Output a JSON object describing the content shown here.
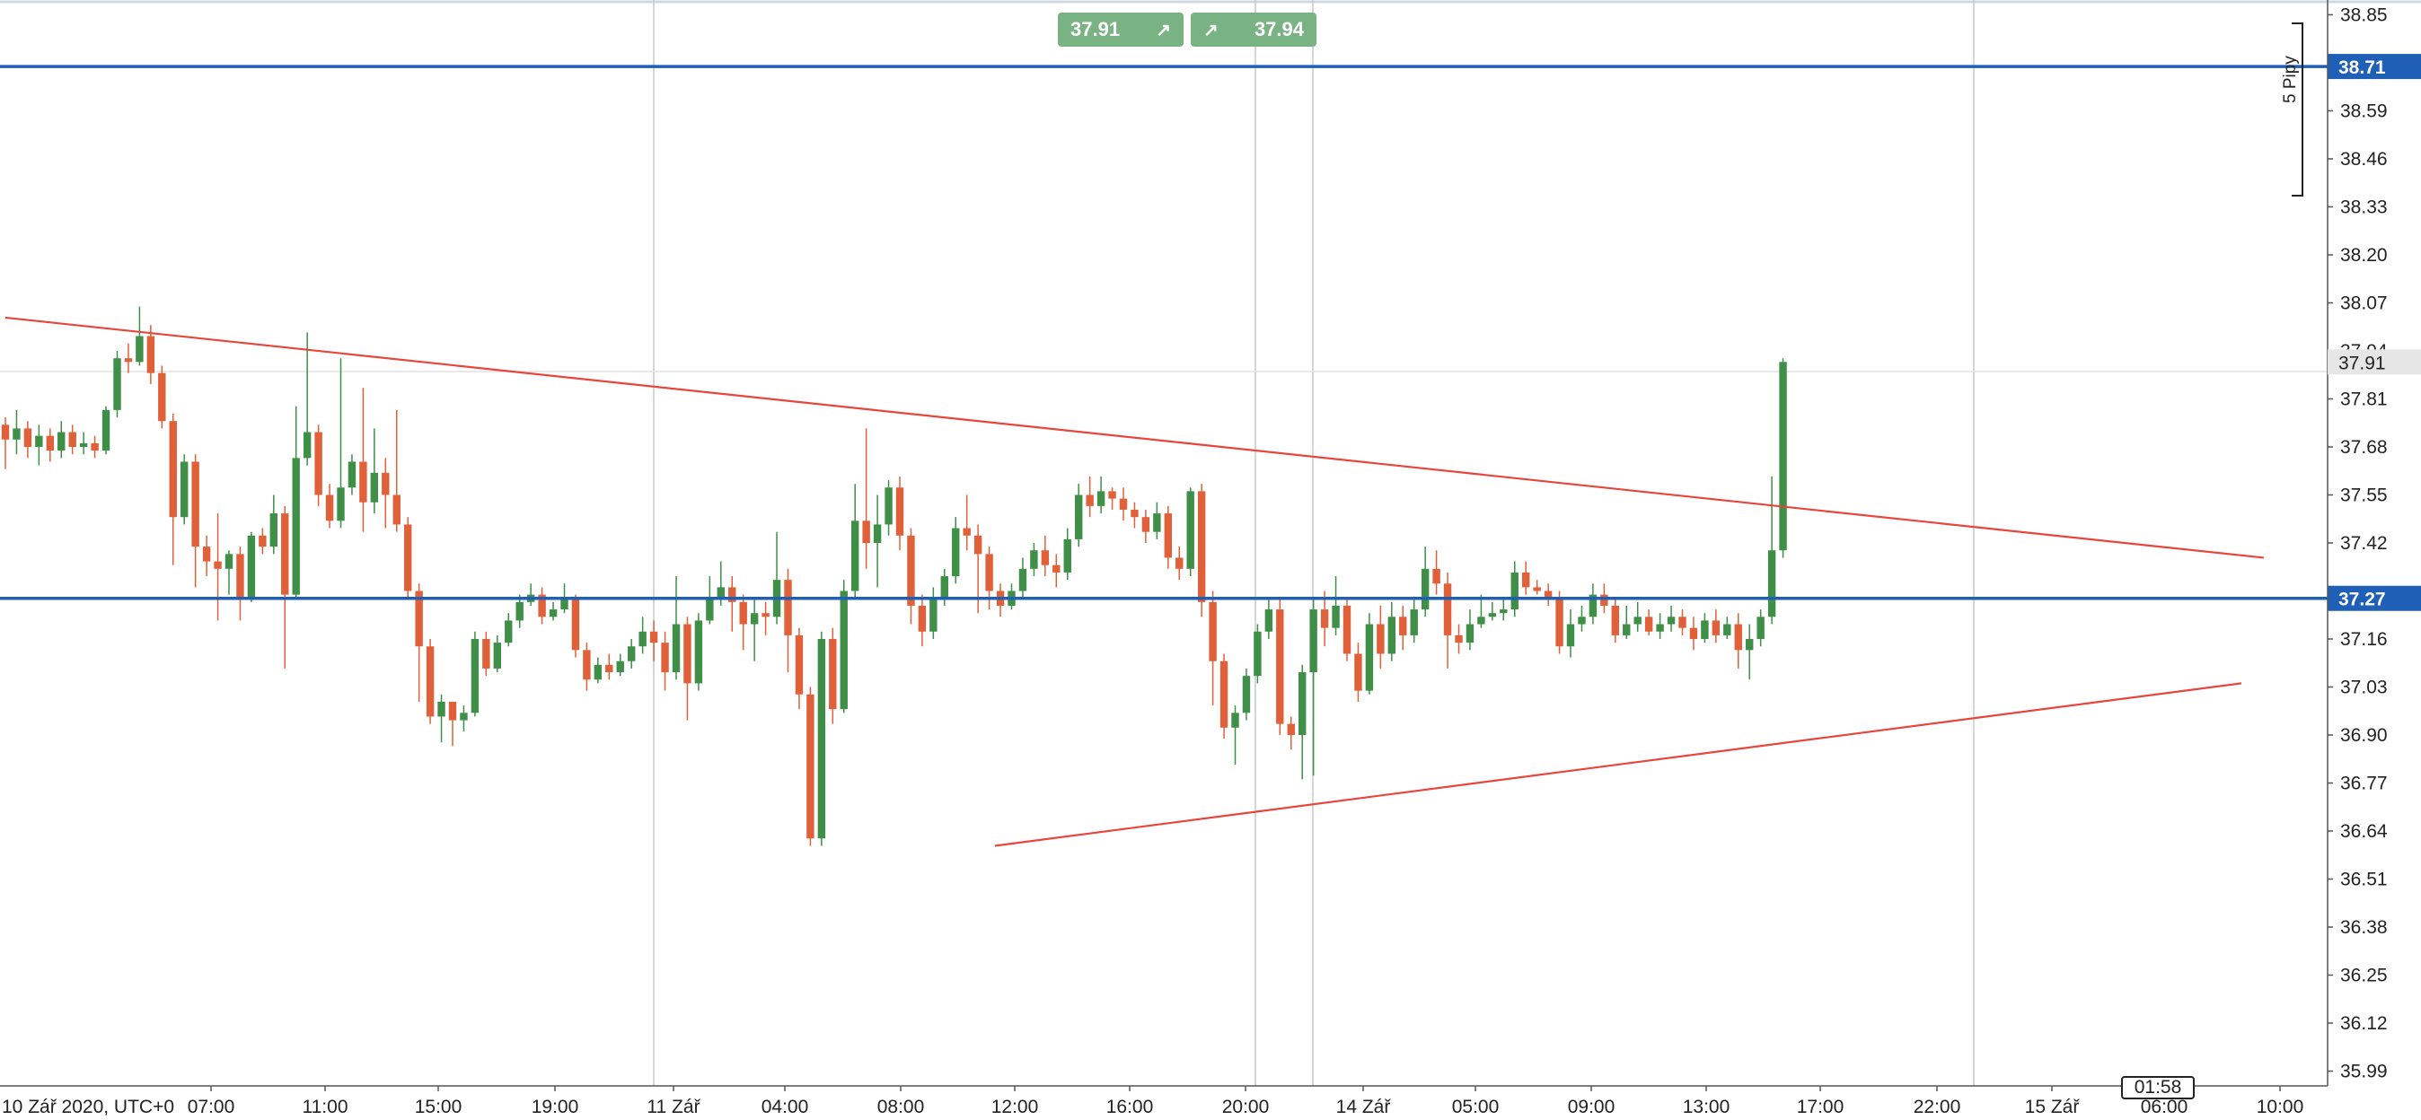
{
  "toolbar": {
    "sell_price": "37.91",
    "buy_price": "37.94",
    "countdown": "01:58",
    "measure_label": "5 Pipy"
  },
  "colors": {
    "bull": "#3f8f48",
    "bear": "#e0603a",
    "hline": "#1f5fb5",
    "trend": "#e8453c",
    "grid": "#c9c9c9",
    "button": "#7ab383"
  },
  "chart_data": {
    "type": "candlestick",
    "y_ticks": [
      "38.85",
      "38.72",
      "38.59",
      "38.46",
      "38.33",
      "38.20",
      "38.07",
      "37.94",
      "37.81",
      "37.68",
      "37.55",
      "37.42",
      "37.29",
      "37.16",
      "37.03",
      "36.90",
      "36.77",
      "36.64",
      "36.51",
      "36.38",
      "36.25",
      "36.12",
      "35.99"
    ],
    "x_ticks": [
      "10 Zář 2020, UTC+0",
      "07:00",
      "11:00",
      "15:00",
      "19:00",
      "11 Zář",
      "04:00",
      "08:00",
      "12:00",
      "16:00",
      "20:00",
      "14 Zář",
      "05:00",
      "09:00",
      "13:00",
      "17:00",
      "22:00",
      "15 Zář",
      "06:00",
      "10:00"
    ],
    "ylim": [
      35.95,
      38.89
    ],
    "horizontal_lines": [
      {
        "label": "38.71",
        "value": 38.71
      },
      {
        "label": "37.27",
        "value": 37.27
      }
    ],
    "current_price": {
      "label": "37.91",
      "value": 37.91
    },
    "trendlines": [
      {
        "name": "upper",
        "points": [
          [
            0,
            38.03
          ],
          [
            202,
            37.38
          ]
        ]
      },
      {
        "name": "lower",
        "points": [
          [
            88.5,
            36.6
          ],
          [
            200,
            37.04
          ]
        ]
      }
    ],
    "candles": [
      [
        37.74,
        37.7,
        37.76,
        37.62
      ],
      [
        37.7,
        37.73,
        37.78,
        37.66
      ],
      [
        37.73,
        37.68,
        37.75,
        37.65
      ],
      [
        37.68,
        37.71,
        37.74,
        37.63
      ],
      [
        37.71,
        37.67,
        37.73,
        37.64
      ],
      [
        37.67,
        37.72,
        37.75,
        37.65
      ],
      [
        37.72,
        37.68,
        37.74,
        37.66
      ],
      [
        37.68,
        37.69,
        37.72,
        37.66
      ],
      [
        37.69,
        37.67,
        37.71,
        37.65
      ],
      [
        37.67,
        37.78,
        37.79,
        37.66
      ],
      [
        37.78,
        37.92,
        37.94,
        37.76
      ],
      [
        37.92,
        37.91,
        37.96,
        37.88
      ],
      [
        37.91,
        37.98,
        38.06,
        37.9
      ],
      [
        37.98,
        37.88,
        38.01,
        37.85
      ],
      [
        37.88,
        37.75,
        37.9,
        37.73
      ],
      [
        37.75,
        37.49,
        37.77,
        37.36
      ],
      [
        37.49,
        37.64,
        37.66,
        37.47
      ],
      [
        37.64,
        37.41,
        37.66,
        37.3
      ],
      [
        37.41,
        37.37,
        37.44,
        37.33
      ],
      [
        37.37,
        37.35,
        37.5,
        37.21
      ],
      [
        37.35,
        37.39,
        37.4,
        37.28
      ],
      [
        37.39,
        37.27,
        37.41,
        37.21
      ],
      [
        37.27,
        37.44,
        37.45,
        37.26
      ],
      [
        37.44,
        37.41,
        37.46,
        37.39
      ],
      [
        37.41,
        37.5,
        37.55,
        37.39
      ],
      [
        37.5,
        37.28,
        37.52,
        37.08
      ],
      [
        37.28,
        37.65,
        37.79,
        37.27
      ],
      [
        37.65,
        37.72,
        37.99,
        37.63
      ],
      [
        37.72,
        37.55,
        37.74,
        37.52
      ],
      [
        37.55,
        37.48,
        37.58,
        37.46
      ],
      [
        37.48,
        37.57,
        37.92,
        37.46
      ],
      [
        37.57,
        37.64,
        37.66,
        37.55
      ],
      [
        37.64,
        37.53,
        37.84,
        37.45
      ],
      [
        37.53,
        37.61,
        37.73,
        37.5
      ],
      [
        37.61,
        37.55,
        37.65,
        37.46
      ],
      [
        37.55,
        37.47,
        37.78,
        37.45
      ],
      [
        37.47,
        37.29,
        37.49,
        37.27
      ],
      [
        37.29,
        37.14,
        37.31,
        36.99
      ],
      [
        37.14,
        36.95,
        37.16,
        36.93
      ],
      [
        36.95,
        36.99,
        37.01,
        36.88
      ],
      [
        36.99,
        36.94,
        36.97,
        36.87
      ],
      [
        36.94,
        36.96,
        36.98,
        36.91
      ],
      [
        36.96,
        37.16,
        37.18,
        36.95
      ],
      [
        37.16,
        37.08,
        37.18,
        37.06
      ],
      [
        37.08,
        37.15,
        37.17,
        37.07
      ],
      [
        37.15,
        37.21,
        37.23,
        37.14
      ],
      [
        37.21,
        37.26,
        37.28,
        37.19
      ],
      [
        37.26,
        37.28,
        37.31,
        37.25
      ],
      [
        37.28,
        37.22,
        37.3,
        37.2
      ],
      [
        37.22,
        37.24,
        37.26,
        37.21
      ],
      [
        37.24,
        37.27,
        37.31,
        37.23
      ],
      [
        37.27,
        37.13,
        37.28,
        37.11
      ],
      [
        37.13,
        37.05,
        37.15,
        37.02
      ],
      [
        37.05,
        37.09,
        37.11,
        37.04
      ],
      [
        37.09,
        37.07,
        37.12,
        37.05
      ],
      [
        37.07,
        37.1,
        37.12,
        37.06
      ],
      [
        37.1,
        37.14,
        37.16,
        37.08
      ],
      [
        37.14,
        37.18,
        37.22,
        37.12
      ],
      [
        37.18,
        37.15,
        37.21,
        37.1
      ],
      [
        37.15,
        37.07,
        37.18,
        37.02
      ],
      [
        37.07,
        37.2,
        37.33,
        37.05
      ],
      [
        37.2,
        37.04,
        37.22,
        36.94
      ],
      [
        37.04,
        37.21,
        37.23,
        37.02
      ],
      [
        37.21,
        37.27,
        37.33,
        37.2
      ],
      [
        37.27,
        37.3,
        37.37,
        37.25
      ],
      [
        37.3,
        37.26,
        37.33,
        37.18
      ],
      [
        37.26,
        37.2,
        37.28,
        37.13
      ],
      [
        37.2,
        37.23,
        37.27,
        37.1
      ],
      [
        37.23,
        37.22,
        37.26,
        37.17
      ],
      [
        37.22,
        37.32,
        37.45,
        37.2
      ],
      [
        37.32,
        37.17,
        37.35,
        37.07
      ],
      [
        37.17,
        37.01,
        37.19,
        36.97
      ],
      [
        37.01,
        36.62,
        37.03,
        36.6
      ],
      [
        36.62,
        37.16,
        37.18,
        36.6
      ],
      [
        37.16,
        36.97,
        37.19,
        36.93
      ],
      [
        36.97,
        37.29,
        37.32,
        36.96
      ],
      [
        37.29,
        37.48,
        37.58,
        37.27
      ],
      [
        37.48,
        37.42,
        37.73,
        37.35
      ],
      [
        37.42,
        37.47,
        37.55,
        37.3
      ],
      [
        37.47,
        37.57,
        37.59,
        37.44
      ],
      [
        37.57,
        37.44,
        37.6,
        37.4
      ],
      [
        37.44,
        37.25,
        37.46,
        37.2
      ],
      [
        37.25,
        37.18,
        37.28,
        37.14
      ],
      [
        37.18,
        37.27,
        37.3,
        37.16
      ],
      [
        37.27,
        37.33,
        37.35,
        37.25
      ],
      [
        37.33,
        37.46,
        37.49,
        37.31
      ],
      [
        37.46,
        37.44,
        37.55,
        37.4
      ],
      [
        37.44,
        37.39,
        37.47,
        37.23
      ],
      [
        37.39,
        37.29,
        37.41,
        37.24
      ],
      [
        37.29,
        37.25,
        37.31,
        37.22
      ],
      [
        37.25,
        37.29,
        37.31,
        37.24
      ],
      [
        37.29,
        37.35,
        37.38,
        37.27
      ],
      [
        37.35,
        37.4,
        37.42,
        37.33
      ],
      [
        37.4,
        37.36,
        37.44,
        37.33
      ],
      [
        37.36,
        37.34,
        37.39,
        37.3
      ],
      [
        37.34,
        37.43,
        37.46,
        37.32
      ],
      [
        37.43,
        37.55,
        37.58,
        37.41
      ],
      [
        37.55,
        37.52,
        37.6,
        37.49
      ],
      [
        37.52,
        37.56,
        37.6,
        37.5
      ],
      [
        37.56,
        37.54,
        37.57,
        37.51
      ],
      [
        37.54,
        37.51,
        37.57,
        37.48
      ],
      [
        37.51,
        37.49,
        37.53,
        37.46
      ],
      [
        37.49,
        37.45,
        37.51,
        37.42
      ],
      [
        37.45,
        37.5,
        37.53,
        37.43
      ],
      [
        37.5,
        37.38,
        37.52,
        37.35
      ],
      [
        37.38,
        37.35,
        37.41,
        37.32
      ],
      [
        37.35,
        37.56,
        37.57,
        37.33
      ],
      [
        37.56,
        37.26,
        37.58,
        37.22
      ],
      [
        37.26,
        37.1,
        37.29,
        36.98
      ],
      [
        37.1,
        36.92,
        37.12,
        36.89
      ],
      [
        36.92,
        36.96,
        36.98,
        36.82
      ],
      [
        36.96,
        37.06,
        37.08,
        36.94
      ],
      [
        37.06,
        37.18,
        37.2,
        37.04
      ],
      [
        37.18,
        37.24,
        37.27,
        37.16
      ],
      [
        37.24,
        36.93,
        37.27,
        36.9
      ],
      [
        36.93,
        36.9,
        36.95,
        36.86
      ],
      [
        36.9,
        37.07,
        37.09,
        36.78
      ],
      [
        37.07,
        37.24,
        37.27,
        36.79
      ],
      [
        37.24,
        37.19,
        37.29,
        37.14
      ],
      [
        37.19,
        37.25,
        37.33,
        37.17
      ],
      [
        37.25,
        37.12,
        37.27,
        37.1
      ],
      [
        37.12,
        37.02,
        37.15,
        36.99
      ],
      [
        37.02,
        37.2,
        37.23,
        37.01
      ],
      [
        37.2,
        37.12,
        37.25,
        37.08
      ],
      [
        37.12,
        37.22,
        37.26,
        37.1
      ],
      [
        37.22,
        37.17,
        37.25,
        37.13
      ],
      [
        37.17,
        37.24,
        37.27,
        37.15
      ],
      [
        37.24,
        37.35,
        37.41,
        37.22
      ],
      [
        37.35,
        37.31,
        37.4,
        37.28
      ],
      [
        37.31,
        37.17,
        37.34,
        37.08
      ],
      [
        37.17,
        37.15,
        37.2,
        37.12
      ],
      [
        37.15,
        37.2,
        37.24,
        37.13
      ],
      [
        37.2,
        37.22,
        37.28,
        37.19
      ],
      [
        37.22,
        37.23,
        37.26,
        37.21
      ],
      [
        37.23,
        37.24,
        37.27,
        37.21
      ],
      [
        37.24,
        37.34,
        37.37,
        37.22
      ],
      [
        37.34,
        37.3,
        37.37,
        37.28
      ],
      [
        37.3,
        37.29,
        37.32,
        37.28
      ],
      [
        37.29,
        37.27,
        37.31,
        37.25
      ],
      [
        37.27,
        37.14,
        37.29,
        37.12
      ],
      [
        37.14,
        37.2,
        37.24,
        37.11
      ],
      [
        37.2,
        37.22,
        37.25,
        37.18
      ],
      [
        37.22,
        37.28,
        37.31,
        37.2
      ],
      [
        37.28,
        37.25,
        37.31,
        37.23
      ],
      [
        37.25,
        37.17,
        37.27,
        37.15
      ],
      [
        37.17,
        37.2,
        37.25,
        37.16
      ],
      [
        37.2,
        37.22,
        37.26,
        37.18
      ],
      [
        37.22,
        37.18,
        37.24,
        37.17
      ],
      [
        37.18,
        37.2,
        37.23,
        37.16
      ],
      [
        37.2,
        37.22,
        37.25,
        37.18
      ],
      [
        37.22,
        37.19,
        37.24,
        37.17
      ],
      [
        37.19,
        37.16,
        37.22,
        37.13
      ],
      [
        37.16,
        37.21,
        37.23,
        37.15
      ],
      [
        37.21,
        37.17,
        37.24,
        37.15
      ],
      [
        37.17,
        37.2,
        37.22,
        37.16
      ],
      [
        37.2,
        37.13,
        37.23,
        37.08
      ],
      [
        37.13,
        37.16,
        37.2,
        37.05
      ],
      [
        37.16,
        37.22,
        37.24,
        37.14
      ],
      [
        37.22,
        37.4,
        37.6,
        37.2
      ],
      [
        37.4,
        37.91,
        37.92,
        37.38
      ]
    ]
  }
}
